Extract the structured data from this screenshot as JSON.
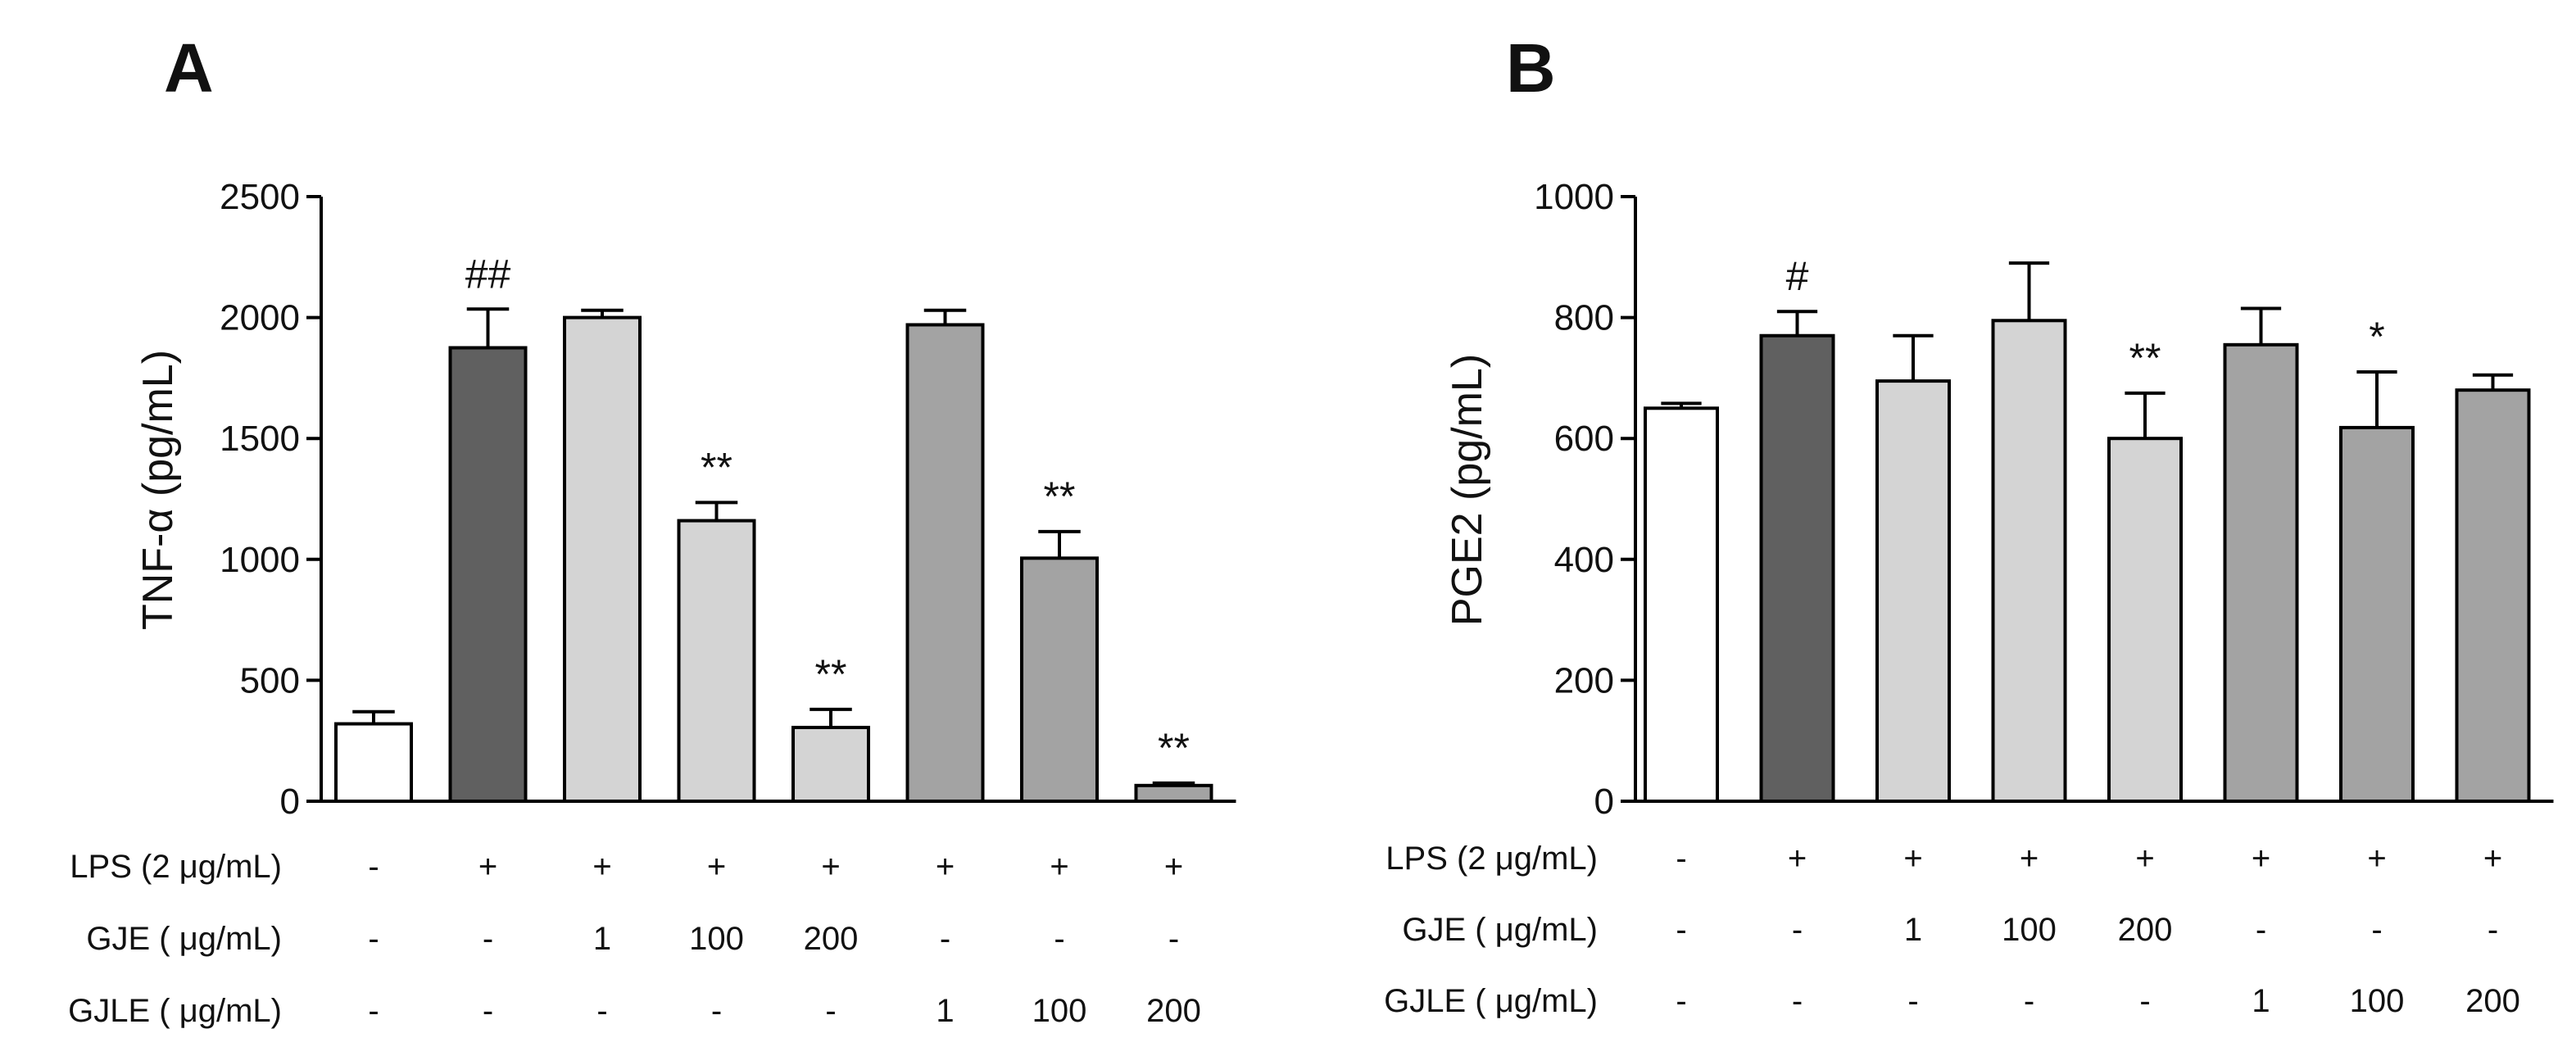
{
  "chart_data": [
    {
      "panel": "A",
      "type": "bar",
      "ylabel": "TNF-α (pg/mL)",
      "ylim": [
        0,
        2500
      ],
      "yticks": [
        "0",
        "500",
        "1000",
        "1500",
        "2000",
        "2500"
      ],
      "values": [
        320,
        1875,
        2000,
        1160,
        305,
        1970,
        1005,
        65
      ],
      "errors": [
        50,
        160,
        30,
        75,
        75,
        60,
        110,
        10
      ],
      "colors": [
        "#ffffff",
        "#606060",
        "#d4d4d4",
        "#d4d4d4",
        "#d4d4d4",
        "#a3a3a3",
        "#a3a3a3",
        "#a3a3a3"
      ],
      "annotations": [
        "",
        "##",
        "",
        "**",
        "**",
        "",
        "**",
        "**"
      ],
      "conditions": [
        {
          "label": "LPS (2 μg/mL)",
          "values": [
            "-",
            "+",
            "+",
            "+",
            "+",
            "+",
            "+",
            "+"
          ]
        },
        {
          "label": "GJE ( μg/mL)",
          "values": [
            "-",
            "-",
            "1",
            "100",
            "200",
            "-",
            "-",
            "-"
          ]
        },
        {
          "label": "GJLE ( μg/mL)",
          "values": [
            "-",
            "-",
            "-",
            "-",
            "-",
            "1",
            "100",
            "200"
          ]
        }
      ]
    },
    {
      "panel": "B",
      "type": "bar",
      "ylabel": "PGE2 (pg/mL)",
      "ylim": [
        0,
        1000
      ],
      "yticks": [
        "0",
        "200",
        "400",
        "600",
        "800",
        "1000"
      ],
      "values": [
        650,
        770,
        695,
        795,
        600,
        755,
        618,
        680
      ],
      "errors": [
        8,
        40,
        75,
        95,
        75,
        60,
        92,
        25
      ],
      "colors": [
        "#ffffff",
        "#606060",
        "#d4d4d4",
        "#d4d4d4",
        "#d4d4d4",
        "#a3a3a3",
        "#a3a3a3",
        "#a3a3a3"
      ],
      "annotations": [
        "",
        "#",
        "",
        "",
        "**",
        "",
        "*",
        ""
      ],
      "conditions": [
        {
          "label": "LPS (2 μg/mL)",
          "values": [
            "-",
            "+",
            "+",
            "+",
            "+",
            "+",
            "+",
            "+"
          ]
        },
        {
          "label": "GJE ( μg/mL)",
          "values": [
            "-",
            "-",
            "1",
            "100",
            "200",
            "-",
            "-",
            "-"
          ]
        },
        {
          "label": "GJLE ( μg/mL)",
          "values": [
            "-",
            "-",
            "-",
            "-",
            "-",
            "1",
            "100",
            "200"
          ]
        }
      ]
    }
  ]
}
